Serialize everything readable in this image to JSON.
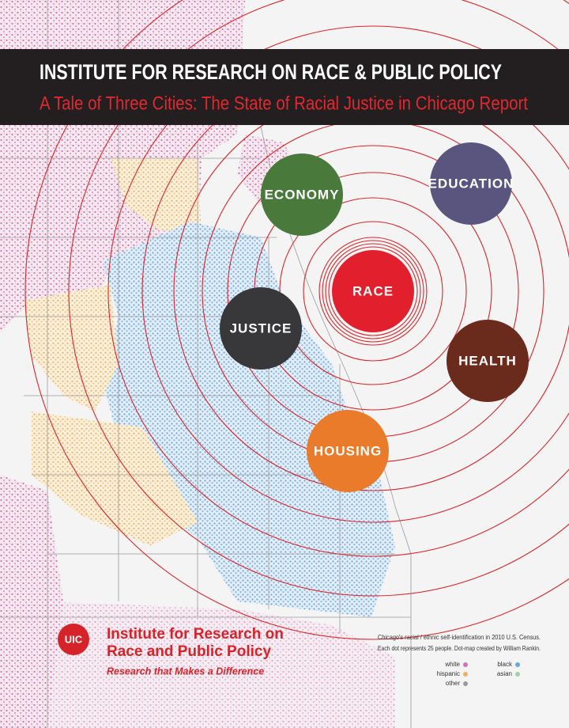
{
  "header": {
    "title": "INSTITUTE FOR RESEARCH ON RACE & PUBLIC POLICY",
    "subtitle": "A Tale of Three Cities: The State of Racial Justice in Chicago Report"
  },
  "topics": [
    "ECONOMY",
    "EDUCATION",
    "RACE",
    "JUSTICE",
    "HEALTH",
    "HOUSING"
  ],
  "footer": {
    "logo": "UIC",
    "institute": [
      "Institute for Research on",
      "Race and Public Policy"
    ],
    "tagline": "Research that Makes a Difference"
  },
  "map_note": {
    "lines": [
      "Chicago's racial / ethnic self-identification in 2010 U.S. Census.",
      "Each dot represents 25 people. Dot-map created by William Rankin."
    ],
    "legend": [
      "white",
      "hispanic",
      "other",
      "black",
      "asian"
    ]
  }
}
